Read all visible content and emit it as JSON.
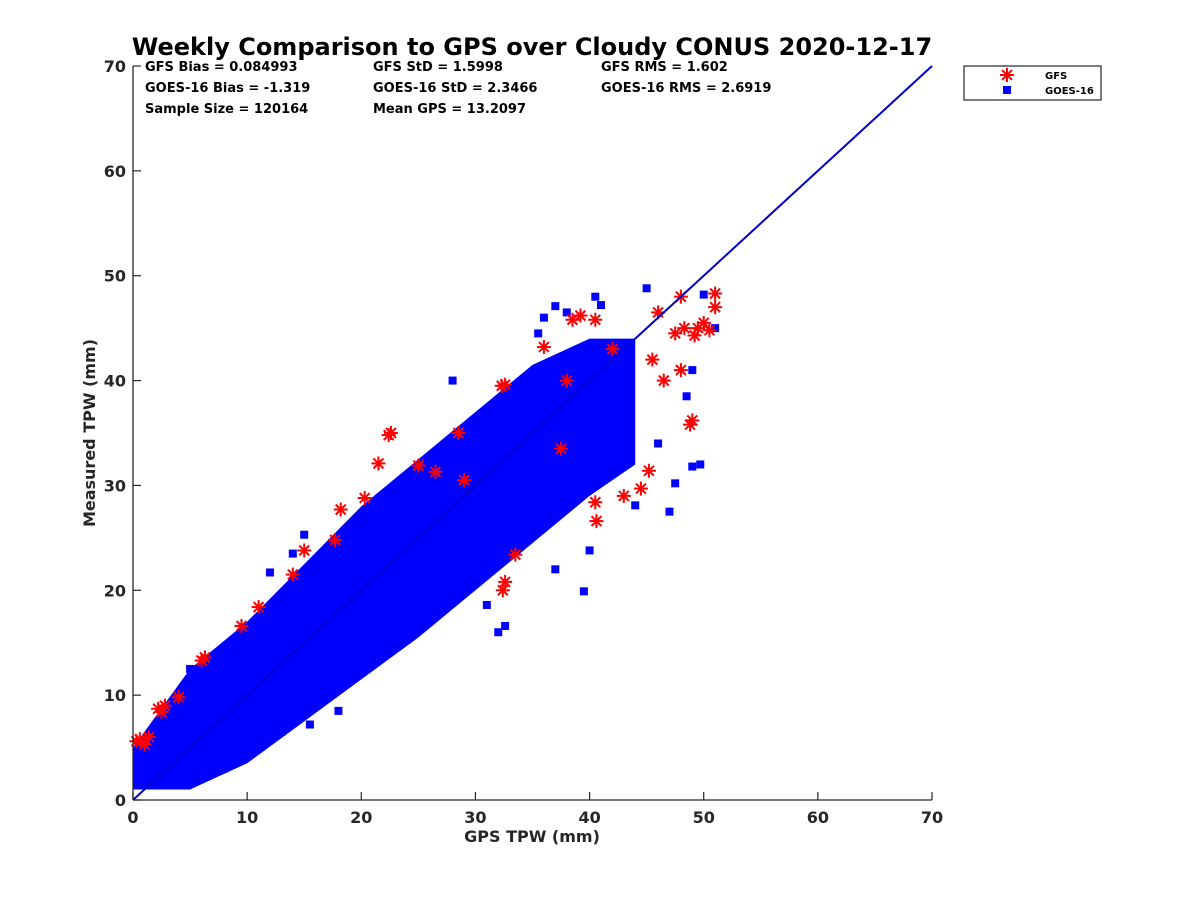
{
  "chart_data": {
    "type": "scatter",
    "title": "Weekly Comparison to GPS over Cloudy CONUS 2020-12-17",
    "xlabel": "GPS TPW (mm)",
    "ylabel": "Measured TPW (mm)",
    "xlim": [
      0,
      70
    ],
    "ylim": [
      0,
      70
    ],
    "xticks": [
      0,
      10,
      20,
      30,
      40,
      50,
      60,
      70
    ],
    "yticks": [
      0,
      10,
      20,
      30,
      40,
      50,
      60,
      70
    ],
    "grid": false,
    "legend_position": "top-right outside",
    "stats": [
      [
        "GFS Bias = 0.084993",
        "GFS StD = 1.5998",
        "GFS RMS = 1.602"
      ],
      [
        "GOES-16 Bias = -1.319",
        "GOES-16 StD = 2.3466",
        "GOES-16 RMS = 2.6919"
      ],
      [
        "Sample Size = 120164",
        "Mean GPS = 13.2097",
        ""
      ]
    ],
    "reference_line": {
      "x": [
        0,
        70
      ],
      "y": [
        0,
        70
      ],
      "color": "#0000cc"
    },
    "series": [
      {
        "name": "GFS",
        "marker": "asterisk",
        "color": "#ff0000",
        "points": [
          [
            0.3,
            5.6
          ],
          [
            0.6,
            5.8
          ],
          [
            1.0,
            5.3
          ],
          [
            1.4,
            6.0
          ],
          [
            2.2,
            8.7
          ],
          [
            2.5,
            8.4
          ],
          [
            2.8,
            9.0
          ],
          [
            4.0,
            9.8
          ],
          [
            6.0,
            13.3
          ],
          [
            6.3,
            13.6
          ],
          [
            9.5,
            16.6
          ],
          [
            11.0,
            18.4
          ],
          [
            14.0,
            21.5
          ],
          [
            15.0,
            23.8
          ],
          [
            17.7,
            24.8
          ],
          [
            18.2,
            27.7
          ],
          [
            20.3,
            28.8
          ],
          [
            21.5,
            32.1
          ],
          [
            22.4,
            34.8
          ],
          [
            22.6,
            35.0
          ],
          [
            25.0,
            31.9
          ],
          [
            28.5,
            35.0
          ],
          [
            29.0,
            30.5
          ],
          [
            32.3,
            39.5
          ],
          [
            32.6,
            39.6
          ],
          [
            32.4,
            20.0
          ],
          [
            32.6,
            20.8
          ],
          [
            33.5,
            23.4
          ],
          [
            36.0,
            43.2
          ],
          [
            38.0,
            40.0
          ],
          [
            38.5,
            45.8
          ],
          [
            39.2,
            46.2
          ],
          [
            40.5,
            45.8
          ],
          [
            40.6,
            26.6
          ],
          [
            40.5,
            28.4
          ],
          [
            42.0,
            43.0
          ],
          [
            43.0,
            29.0
          ],
          [
            44.5,
            29.7
          ],
          [
            45.5,
            42.0
          ],
          [
            46.0,
            46.5
          ],
          [
            46.5,
            40.0
          ],
          [
            47.5,
            44.5
          ],
          [
            48.0,
            48.0
          ],
          [
            48.0,
            41.0
          ],
          [
            48.3,
            45.0
          ],
          [
            48.8,
            35.8
          ],
          [
            49.0,
            36.2
          ],
          [
            49.2,
            44.3
          ],
          [
            49.5,
            45.0
          ],
          [
            50.0,
            45.5
          ],
          [
            50.5,
            44.8
          ],
          [
            51.0,
            48.3
          ],
          [
            51.0,
            47.0
          ],
          [
            45.2,
            31.4
          ],
          [
            37.5,
            33.5
          ],
          [
            26.5,
            31.3
          ]
        ]
      },
      {
        "name": "GOES-16",
        "marker": "square",
        "color": "#0000ff",
        "points": [
          [
            28.0,
            40.0
          ],
          [
            29.5,
            35.5
          ],
          [
            35.5,
            44.5
          ],
          [
            36.0,
            46.0
          ],
          [
            37.0,
            47.1
          ],
          [
            38.0,
            46.5
          ],
          [
            40.5,
            48.0
          ],
          [
            41.0,
            47.2
          ],
          [
            39.5,
            19.9
          ],
          [
            40.0,
            23.8
          ],
          [
            32.0,
            16.0
          ],
          [
            32.6,
            16.6
          ],
          [
            31.0,
            18.6
          ],
          [
            29.0,
            20.5
          ],
          [
            44.0,
            28.1
          ],
          [
            47.5,
            30.2
          ],
          [
            49.0,
            31.8
          ],
          [
            49.7,
            32.0
          ],
          [
            48.5,
            38.5
          ],
          [
            49.0,
            41.0
          ],
          [
            50.0,
            48.2
          ],
          [
            51.0,
            45.0
          ],
          [
            45.0,
            48.8
          ],
          [
            21.0,
            13.0
          ],
          [
            18.0,
            8.5
          ],
          [
            16.0,
            9.5
          ],
          [
            15.5,
            7.2
          ],
          [
            13.0,
            6.5
          ],
          [
            5.0,
            12.5
          ],
          [
            12.0,
            21.7
          ],
          [
            14.0,
            23.5
          ],
          [
            15.0,
            25.3
          ],
          [
            10.0,
            5.5
          ],
          [
            8.0,
            3.0
          ],
          [
            11.5,
            8.2
          ],
          [
            46.0,
            34.0
          ],
          [
            47.0,
            27.5
          ],
          [
            42.0,
            33.0
          ],
          [
            43.5,
            36.5
          ],
          [
            37.0,
            22.0
          ]
        ]
      }
    ],
    "density_band": {
      "description_hidden": true,
      "upper": [
        [
          0,
          5.0
        ],
        [
          5,
          12.5
        ],
        [
          10,
          17.0
        ],
        [
          15,
          22.5
        ],
        [
          20,
          28.0
        ],
        [
          25,
          32.5
        ],
        [
          30,
          37.0
        ],
        [
          35,
          41.5
        ],
        [
          40,
          44.0
        ],
        [
          44,
          44.0
        ]
      ],
      "lower": [
        [
          44,
          32.0
        ],
        [
          40,
          29.0
        ],
        [
          35,
          24.5
        ],
        [
          30,
          20.0
        ],
        [
          25,
          15.5
        ],
        [
          20,
          11.5
        ],
        [
          15,
          7.5
        ],
        [
          10,
          3.5
        ],
        [
          5,
          1.0
        ],
        [
          0,
          1.0
        ]
      ]
    },
    "legend": [
      {
        "label": "GFS",
        "marker": "asterisk",
        "color": "#ff0000"
      },
      {
        "label": "GOES-16",
        "marker": "square",
        "color": "#0000ff"
      }
    ]
  }
}
